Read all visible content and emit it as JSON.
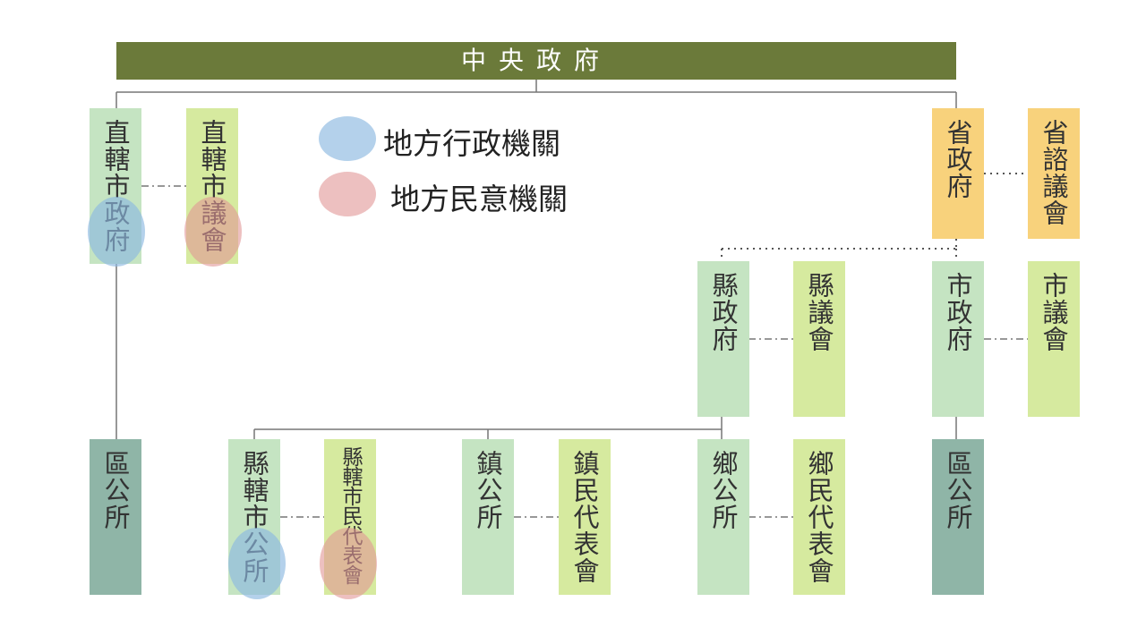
{
  "header": {
    "title": "中央政府"
  },
  "legend": {
    "items": [
      {
        "label": "地方行政機關"
      },
      {
        "label": "地方民意機關"
      }
    ]
  },
  "nodes": [
    {
      "label": "直轄市政府"
    },
    {
      "label": "直轄市議會"
    },
    {
      "label": "省政府"
    },
    {
      "label": "省諮議會"
    },
    {
      "label": "縣政府"
    },
    {
      "label": "縣議會"
    },
    {
      "label": "市政府"
    },
    {
      "label": "市議會"
    },
    {
      "label": "區公所"
    },
    {
      "label": "縣轄市公所"
    },
    {
      "label": "縣轄市民代表會"
    },
    {
      "label": "鎮公所"
    },
    {
      "label": "鎮民代表會"
    },
    {
      "label": "鄉公所"
    },
    {
      "label": "鄉民代表會"
    },
    {
      "label": "區公所"
    }
  ]
}
